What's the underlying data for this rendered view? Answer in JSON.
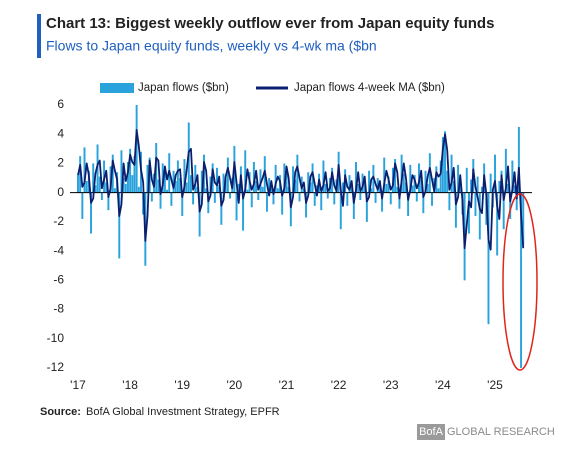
{
  "chart_data": {
    "type": "bar_line",
    "title": "Chart 13: Biggest weekly outflow ever from Japan equity funds",
    "subtitle": "Flows to Japan equity funds, weekly vs 4-wk ma ($bn",
    "source_label": "Source:",
    "source": "BofA Global Investment Strategy, EPFR",
    "brand": "BofA",
    "brand_suffix": "GLOBAL RESEARCH",
    "ylim": [
      -12,
      6
    ],
    "yticks": [
      -12,
      -10,
      -8,
      -6,
      -4,
      -2,
      0,
      2,
      4,
      6
    ],
    "categories": [
      "'17",
      null,
      null,
      null,
      null,
      null,
      null,
      null,
      null,
      null,
      null,
      null,
      null,
      null,
      null,
      null,
      null,
      null,
      null,
      null,
      null,
      null,
      null,
      null,
      "'18",
      null,
      null,
      null,
      null,
      null,
      null,
      null,
      null,
      null,
      null,
      null,
      null,
      null,
      null,
      null,
      null,
      null,
      null,
      null,
      null,
      null,
      null,
      null,
      "'19",
      null,
      null,
      null,
      null,
      null,
      null,
      null,
      null,
      null,
      null,
      null,
      null,
      null,
      null,
      null,
      null,
      null,
      null,
      null,
      null,
      null,
      null,
      null,
      "'20",
      null,
      null,
      null,
      null,
      null,
      null,
      null,
      null,
      null,
      null,
      null,
      null,
      null,
      null,
      null,
      null,
      null,
      null,
      null,
      null,
      null,
      null,
      null,
      "'21",
      null,
      null,
      null,
      null,
      null,
      null,
      null,
      null,
      null,
      null,
      null,
      null,
      null,
      null,
      null,
      null,
      null,
      null,
      null,
      null,
      null,
      null,
      null,
      "'22",
      null,
      null,
      null,
      null,
      null,
      null,
      null,
      null,
      null,
      null,
      null,
      null,
      null,
      null,
      null,
      null,
      null,
      null,
      null,
      null,
      null,
      null,
      null,
      "'23",
      null,
      null,
      null,
      null,
      null,
      null,
      null,
      null,
      null,
      null,
      null,
      null,
      null,
      null,
      null,
      null,
      null,
      null,
      null,
      null,
      null,
      null,
      null,
      "'24",
      null,
      null,
      null,
      null,
      null,
      null,
      null,
      null,
      null,
      null,
      null,
      null,
      null,
      null,
      null,
      null,
      null,
      null,
      null,
      null,
      null,
      null,
      null,
      "'25",
      null,
      null,
      null,
      null,
      null,
      null,
      null,
      null,
      null,
      null,
      null,
      null,
      null
    ],
    "series": [
      {
        "name": "Japan flows ($bn)",
        "kind": "bar",
        "color": "#2aa3dd",
        "values": [
          1.2,
          2.5,
          -1.8,
          3.1,
          0.8,
          1.5,
          -2.8,
          2.0,
          0.5,
          3.3,
          1.1,
          -0.5,
          2.2,
          0.7,
          -1.2,
          1.8,
          2.6,
          0.3,
          1.4,
          -4.5,
          2.9,
          1.0,
          0.6,
          2.1,
          3.0,
          1.2,
          2.5,
          6.0,
          0.4,
          2.8,
          -1.5,
          -5.0,
          1.9,
          2.4,
          -0.6,
          1.3,
          3.4,
          0.9,
          -1.1,
          2.0,
          1.6,
          0.2,
          2.7,
          -0.9,
          1.5,
          0.8,
          2.2,
          1.0,
          -1.6,
          2.3,
          0.7,
          4.8,
          1.2,
          -0.8,
          1.9,
          0.4,
          -3.0,
          1.5,
          2.6,
          0.3,
          -1.4,
          1.1,
          2.0,
          -0.7,
          1.7,
          0.5,
          -2.2,
          1.3,
          0.9,
          2.4,
          -0.4,
          1.0,
          3.2,
          -1.9,
          0.6,
          1.8,
          -2.6,
          2.9,
          0.2,
          1.4,
          -1.0,
          2.1,
          0.8,
          -0.5,
          1.6,
          0.4,
          2.5,
          -1.3,
          1.0,
          0.6,
          -0.8,
          1.9,
          0.3,
          1.2,
          -1.5,
          2.0,
          1.5,
          0.4,
          -2.3,
          1.8,
          0.9,
          2.6,
          -0.6,
          1.1,
          0.3,
          -1.7,
          1.4,
          0.7,
          2.0,
          -0.9,
          0.5,
          1.3,
          -1.2,
          2.2,
          0.6,
          -0.4,
          1.0,
          1.7,
          -0.8,
          0.9,
          2.8,
          -2.5,
          0.7,
          1.6,
          -0.9,
          1.2,
          0.4,
          -1.8,
          2.1,
          0.6,
          -0.5,
          1.3,
          0.8,
          -2.0,
          1.5,
          0.3,
          1.9,
          -0.7,
          1.0,
          0.5,
          -1.3,
          2.4,
          0.6,
          1.1,
          -0.8,
          1.7,
          2.3,
          0.4,
          -1.1,
          2.6,
          1.3,
          0.7,
          -1.6,
          1.9,
          0.5,
          1.2,
          -0.6,
          2.0,
          0.9,
          -1.4,
          1.5,
          0.6,
          2.7,
          -0.9,
          1.0,
          1.8,
          0.3,
          2.2,
          3.8,
          4.2,
          1.5,
          -1.2,
          2.6,
          0.8,
          -2.4,
          1.9,
          0.5,
          -1.5,
          -6.0,
          1.7,
          -2.8,
          0.9,
          2.3,
          -1.6,
          1.1,
          -3.2,
          0.4,
          2.0,
          -2.2,
          -9.0,
          1.3,
          -1.0,
          2.6,
          -4.3,
          0.8,
          1.5,
          -2.5,
          3.0,
          0.6,
          -1.8,
          2.2,
          0.5,
          -1.2,
          4.5,
          -12.0,
          -3.6
        ]
      },
      {
        "name": "Japan flows 4-week MA ($bn)",
        "kind": "line",
        "color": "#0b1f6e",
        "values": [
          1.2,
          1.9,
          0.4,
          0.7,
          2.0,
          1.2,
          -0.7,
          -0.4,
          1.3,
          1.9,
          2.2,
          0.3,
          0.9,
          1.5,
          -0.3,
          0.3,
          2.2,
          1.5,
          0.9,
          -1.6,
          -0.8,
          2.0,
          0.8,
          1.4,
          2.6,
          2.1,
          1.9,
          4.3,
          3.2,
          1.6,
          0.7,
          -3.3,
          -1.6,
          2.2,
          0.9,
          0.4,
          2.4,
          2.2,
          -0.1,
          0.5,
          1.8,
          0.9,
          1.5,
          0.9,
          0.3,
          1.2,
          1.5,
          1.6,
          -0.3,
          0.4,
          1.5,
          2.8,
          3.0,
          0.2,
          0.6,
          1.2,
          -1.3,
          -0.8,
          2.1,
          1.5,
          -0.6,
          -0.2,
          1.6,
          0.7,
          0.5,
          1.1,
          -0.9,
          -0.5,
          1.1,
          1.7,
          1.0,
          0.3,
          2.1,
          0.7,
          -0.7,
          1.2,
          -0.4,
          0.2,
          1.6,
          0.8,
          0.2,
          0.6,
          1.5,
          0.2,
          0.6,
          1.0,
          1.5,
          0.6,
          -0.2,
          0.8,
          -0.1,
          0.6,
          1.1,
          0.8,
          -0.2,
          0.3,
          1.8,
          1.0,
          -1.0,
          -0.3,
          1.4,
          1.8,
          1.0,
          0.3,
          0.7,
          -0.7,
          -0.2,
          1.1,
          1.4,
          0.6,
          -0.2,
          0.9,
          0.1,
          0.5,
          1.4,
          0.1,
          0.3,
          1.4,
          0.5,
          0.1,
          1.9,
          0.2,
          -0.9,
          1.2,
          0.4,
          0.2,
          0.8,
          -0.7,
          0.2,
          1.4,
          0.1,
          0.4,
          1.1,
          -0.6,
          -0.3,
          0.9,
          1.1,
          0.6,
          0.2,
          0.8,
          -0.4,
          0.6,
          1.5,
          0.9,
          0.2,
          0.5,
          2.0,
          1.4,
          -0.4,
          0.8,
          2.0,
          1.0,
          -0.5,
          0.2,
          1.2,
          0.9,
          0.3,
          0.7,
          1.5,
          -0.3,
          0.1,
          1.1,
          1.7,
          0.9,
          0.1,
          1.4,
          1.1,
          1.3,
          3.0,
          4.0,
          2.9,
          0.2,
          0.7,
          1.7,
          -0.8,
          -0.3,
          1.2,
          -0.5,
          -3.8,
          -2.2,
          -0.6,
          -1.0,
          1.6,
          0.4,
          -0.3,
          -1.1,
          -1.4,
          1.2,
          -0.1,
          -3.2,
          -3.9,
          0.2,
          0.8,
          -0.9,
          -1.8,
          1.2,
          -0.5,
          0.3,
          1.8,
          -0.6,
          0.2,
          1.4,
          -0.4,
          1.7,
          -1.5,
          -3.8
        ]
      }
    ]
  }
}
